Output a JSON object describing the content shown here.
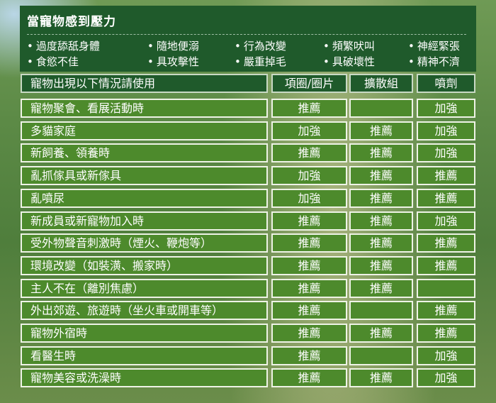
{
  "stress_panel": {
    "title": "當寵物感到壓力",
    "symptoms": [
      "過度舔舐身體",
      "隨地便溺",
      "行為改變",
      "頻繁吠叫",
      "神經緊張",
      "食慾不佳",
      "具攻擊性",
      "嚴重掉毛",
      "具破壞性",
      "精神不濟"
    ]
  },
  "table": {
    "headers": [
      "寵物出現以下情況請使用",
      "項圈/圈片",
      "擴散組",
      "噴劑"
    ],
    "rows": [
      {
        "situation": "寵物聚會、看展活動時",
        "collar": "推薦",
        "diffuser": "",
        "spray": "加強"
      },
      {
        "situation": "多貓家庭",
        "collar": "加強",
        "diffuser": "推薦",
        "spray": "加強"
      },
      {
        "situation": "新飼養、領養時",
        "collar": "推薦",
        "diffuser": "推薦",
        "spray": "加強"
      },
      {
        "situation": "亂抓傢具或新傢具",
        "collar": "加強",
        "diffuser": "推薦",
        "spray": "推薦"
      },
      {
        "situation": "亂噴尿",
        "collar": "加強",
        "diffuser": "推薦",
        "spray": "推薦"
      },
      {
        "situation": "新成員或新寵物加入時",
        "collar": "推薦",
        "diffuser": "推薦",
        "spray": "加強"
      },
      {
        "situation": "受外物聲音刺激時（煙火、鞭炮等）",
        "collar": "推薦",
        "diffuser": "推薦",
        "spray": "推薦"
      },
      {
        "situation": "環境改變（如裝潢、搬家時）",
        "collar": "推薦",
        "diffuser": "推薦",
        "spray": "推薦"
      },
      {
        "situation": "主人不在（離別焦慮）",
        "collar": "推薦",
        "diffuser": "推薦",
        "spray": ""
      },
      {
        "situation": "外出郊遊、旅遊時（坐火車或開車等）",
        "collar": "推薦",
        "diffuser": "",
        "spray": "推薦"
      },
      {
        "situation": "寵物外宿時",
        "collar": "推薦",
        "diffuser": "推薦",
        "spray": "推薦"
      },
      {
        "situation": "看醫生時",
        "collar": "推薦",
        "diffuser": "",
        "spray": "加強"
      },
      {
        "situation": "寵物美容或洗澡時",
        "collar": "推薦",
        "diffuser": "推薦",
        "spray": "加強"
      }
    ]
  },
  "colors": {
    "panel": "#1f5a2b",
    "cell": "#4d8a2c",
    "border": "#eef3e6"
  }
}
